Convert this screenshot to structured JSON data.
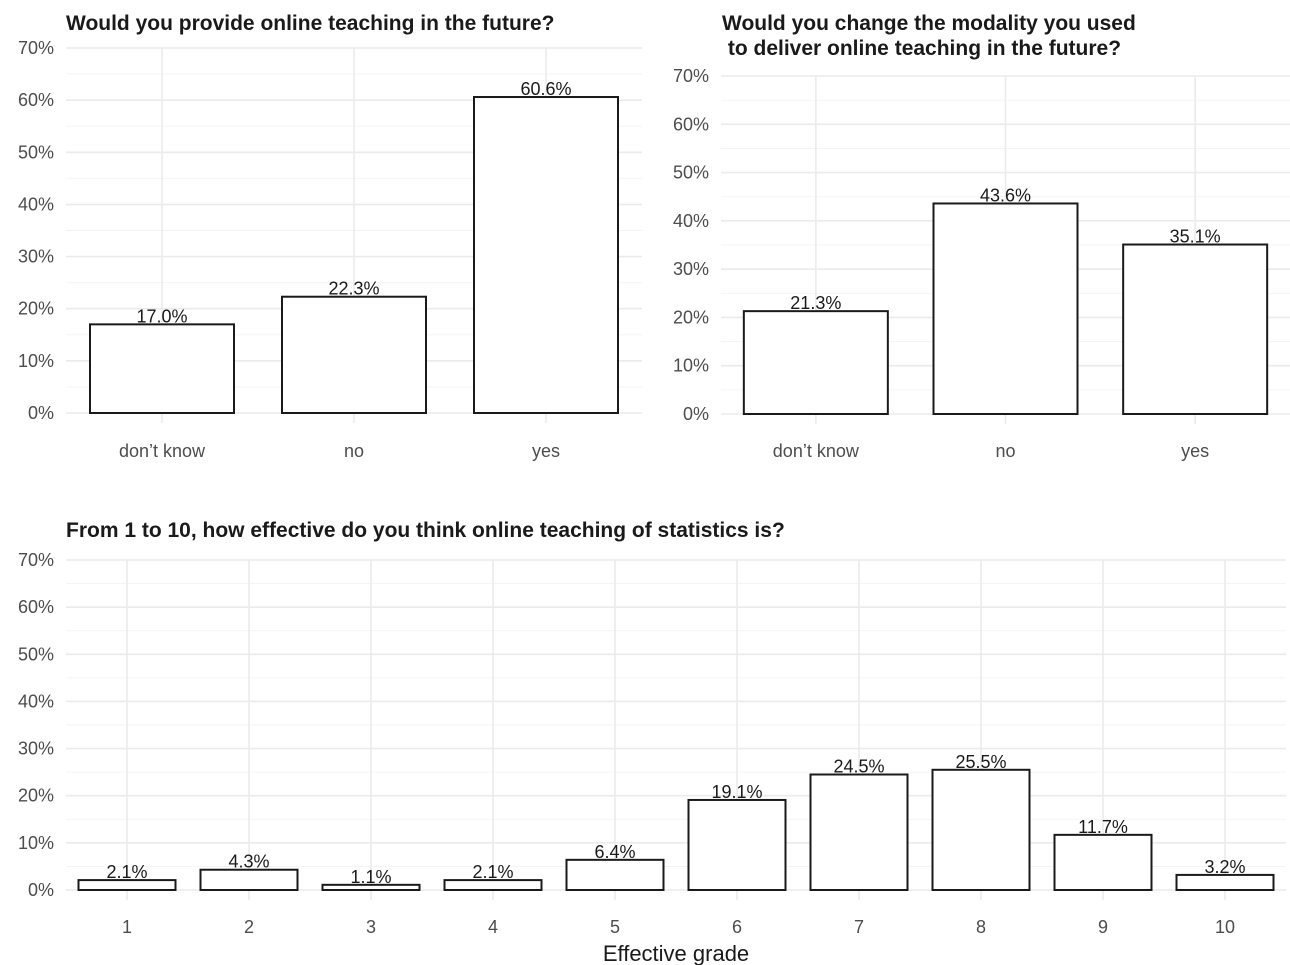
{
  "chart_data": [
    {
      "type": "bar",
      "title": "Would you provide online teaching in the future?",
      "categories": [
        "don’t know",
        "no",
        "yes"
      ],
      "values": [
        17.0,
        22.3,
        60.6
      ],
      "labels": [
        "17.0%",
        "22.3%",
        "60.6%"
      ],
      "xlabel": "",
      "ylabel": "",
      "ylim": [
        0,
        70
      ],
      "yticks": [
        "0%",
        "10%",
        "20%",
        "30%",
        "40%",
        "50%",
        "60%",
        "70%"
      ],
      "grid": true,
      "bar_fill": "#ffffff",
      "bar_stroke": "#1a1a1a"
    },
    {
      "type": "bar",
      "title": "Would you change the modality you used\n to deliver online teaching in the future?",
      "categories": [
        "don’t know",
        "no",
        "yes"
      ],
      "values": [
        21.3,
        43.6,
        35.1
      ],
      "labels": [
        "21.3%",
        "43.6%",
        "35.1%"
      ],
      "xlabel": "",
      "ylabel": "",
      "ylim": [
        0,
        70
      ],
      "yticks": [
        "0%",
        "10%",
        "20%",
        "30%",
        "40%",
        "50%",
        "60%",
        "70%"
      ],
      "grid": true,
      "bar_fill": "#ffffff",
      "bar_stroke": "#1a1a1a"
    },
    {
      "type": "bar",
      "title": "From 1 to 10, how effective do you think online teaching of statistics is?",
      "categories": [
        "1",
        "2",
        "3",
        "4",
        "5",
        "6",
        "7",
        "8",
        "9",
        "10"
      ],
      "values": [
        2.1,
        4.3,
        1.1,
        2.1,
        6.4,
        19.1,
        24.5,
        25.5,
        11.7,
        3.2
      ],
      "labels": [
        "2.1%",
        "4.3%",
        "1.1%",
        "2.1%",
        "6.4%",
        "19.1%",
        "24.5%",
        "25.5%",
        "11.7%",
        "3.2%"
      ],
      "xlabel": "Effective grade",
      "ylabel": "",
      "ylim": [
        0,
        70
      ],
      "yticks": [
        "0%",
        "10%",
        "20%",
        "30%",
        "40%",
        "50%",
        "60%",
        "70%"
      ],
      "grid": true,
      "bar_fill": "#ffffff",
      "bar_stroke": "#1a1a1a"
    }
  ]
}
